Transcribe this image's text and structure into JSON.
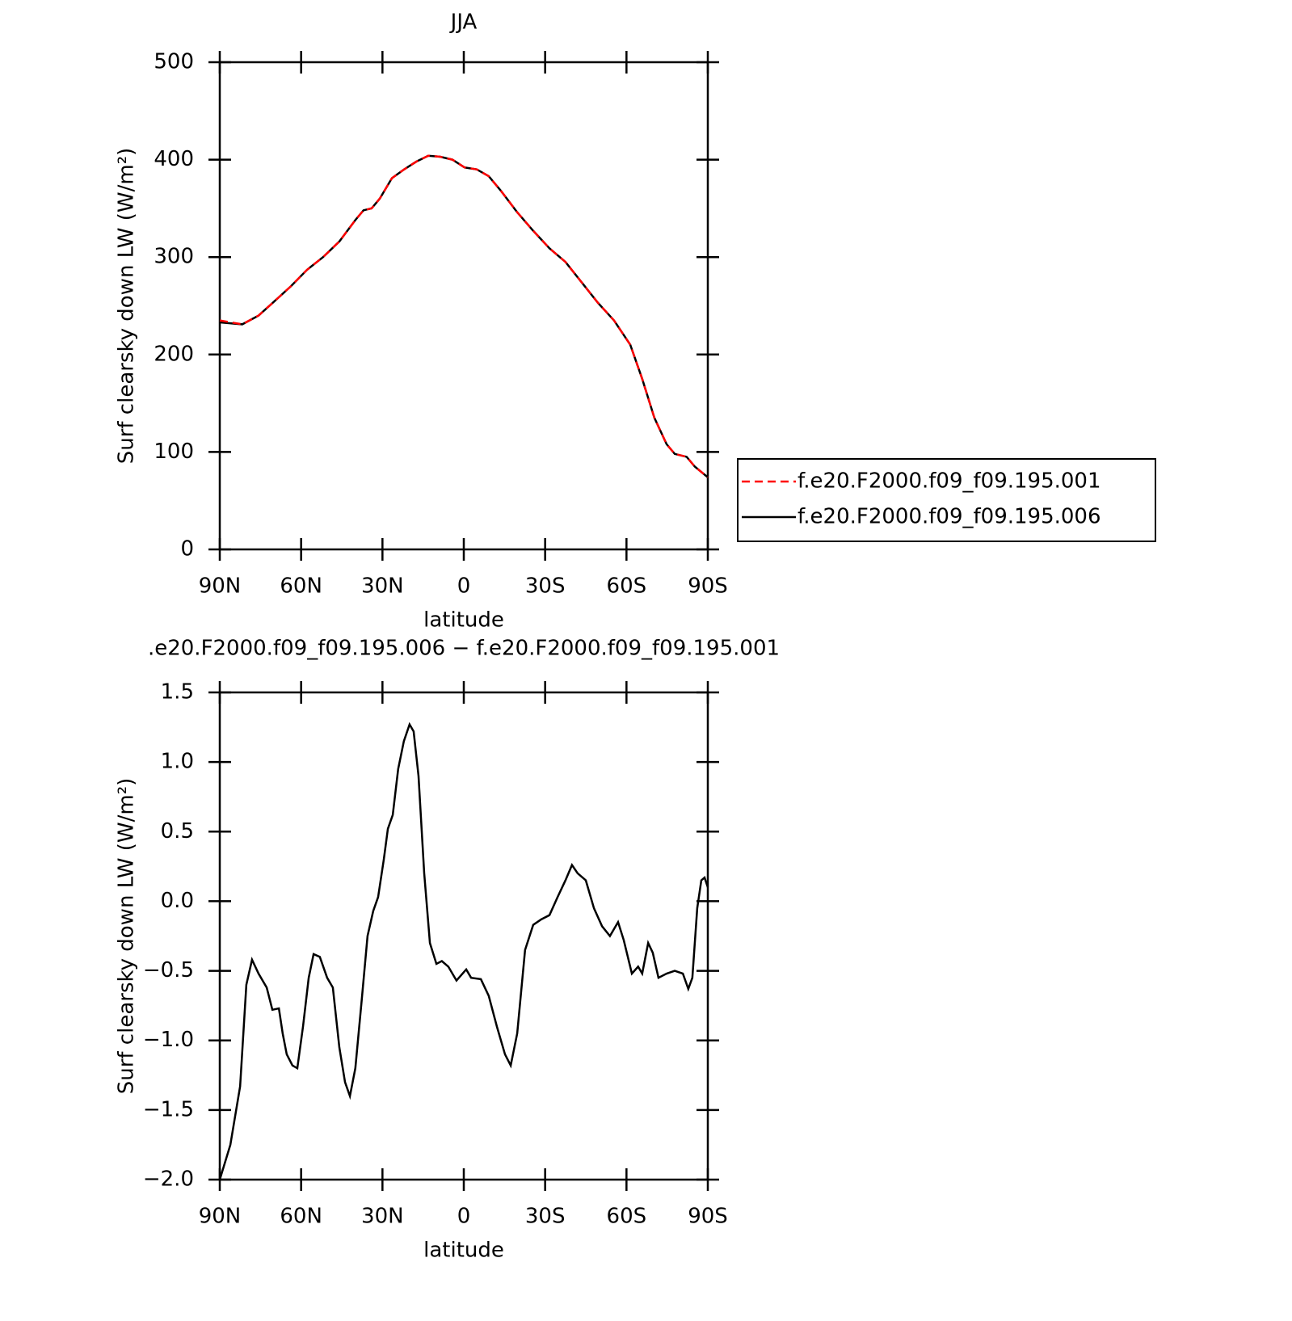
{
  "chart_data": [
    {
      "type": "line",
      "title": "JJA",
      "xlabel": "latitude",
      "ylabel": "Surf clearsky down LW (W/m²)",
      "xlim": [
        90,
        -90
      ],
      "xticks": [
        {
          "value": 90,
          "label": "90N"
        },
        {
          "value": 60,
          "label": "60N"
        },
        {
          "value": 30,
          "label": "30N"
        },
        {
          "value": 0,
          "label": "0"
        },
        {
          "value": -30,
          "label": "30S"
        },
        {
          "value": -60,
          "label": "60S"
        },
        {
          "value": -90,
          "label": "90S"
        }
      ],
      "ylim": [
        0,
        500
      ],
      "yticks": [
        0,
        100,
        200,
        300,
        400,
        500
      ],
      "legend": "outside-right",
      "x": [
        90,
        81.7,
        75.7,
        69.7,
        63.8,
        57.8,
        51.9,
        45.9,
        40,
        37,
        34,
        31,
        26.5,
        22,
        17.5,
        13.1,
        8.7,
        4.2,
        -0.3,
        -4.8,
        -9.2,
        -13.7,
        -19.7,
        -25.6,
        -31.6,
        -37.5,
        -43.5,
        -49.5,
        -55.4,
        -61.4,
        -65.8,
        -70.3,
        -74.8,
        -77.8,
        -82.2,
        -85.2,
        -90
      ],
      "series": [
        {
          "name": "f.e20.F2000.f09_f09.195.001",
          "color": "#ff0000",
          "dashed": true,
          "values": [
            235,
            231,
            240,
            255,
            270,
            287,
            300,
            316,
            338,
            348,
            350,
            360,
            381,
            390,
            398,
            404,
            403,
            400,
            392,
            390,
            383,
            368,
            346,
            327,
            309,
            295,
            274,
            253,
            235,
            210,
            175,
            135,
            108,
            98,
            95,
            85,
            74
          ]
        },
        {
          "name": "f.e20.F2000.f09_f09.195.006",
          "color": "#000000",
          "dashed": false,
          "values": [
            233,
            231,
            240,
            255,
            270,
            287,
            300,
            316,
            338,
            348,
            350,
            360,
            381,
            390,
            398,
            404,
            403,
            400,
            392,
            390,
            383,
            368,
            346,
            327,
            309,
            295,
            274,
            253,
            235,
            210,
            175,
            135,
            108,
            98,
            95,
            85,
            74
          ]
        }
      ]
    },
    {
      "type": "line",
      "title": ".e20.F2000.f09_f09.195.006 − f.e20.F2000.f09_f09.195.001",
      "xlabel": "latitude",
      "ylabel": "Surf clearsky down LW (W/m²)",
      "xlim": [
        90,
        -90
      ],
      "xticks": [
        {
          "value": 90,
          "label": "90N"
        },
        {
          "value": 60,
          "label": "60N"
        },
        {
          "value": 30,
          "label": "30N"
        },
        {
          "value": 0,
          "label": "0"
        },
        {
          "value": -30,
          "label": "30S"
        },
        {
          "value": -60,
          "label": "60S"
        },
        {
          "value": -90,
          "label": "90S"
        }
      ],
      "ylim": [
        -2.0,
        1.5
      ],
      "yticks": [
        {
          "value": -2.0,
          "label": "−2.0"
        },
        {
          "value": -1.5,
          "label": "−1.5"
        },
        {
          "value": -1.0,
          "label": "−1.0"
        },
        {
          "value": -0.5,
          "label": "−0.5"
        },
        {
          "value": 0,
          "label": "0.0"
        },
        {
          "value": 0.5,
          "label": "0.5"
        },
        {
          "value": 1.0,
          "label": "1.0"
        },
        {
          "value": 1.5,
          "label": "1.5"
        }
      ],
      "color": "#000000",
      "x": [
        90,
        86.1,
        82.5,
        80.2,
        78.1,
        75.7,
        72.7,
        70.6,
        68.2,
        66.8,
        65.3,
        63.2,
        61.4,
        59.3,
        57.2,
        55.4,
        53.1,
        50.4,
        48.3,
        45.9,
        43.8,
        42,
        40,
        37.6,
        35.5,
        33.4,
        31.6,
        29.5,
        28,
        26.2,
        24.2,
        22.1,
        20,
        18.5,
        16.7,
        14.6,
        12.5,
        10.1,
        8.1,
        5.7,
        2.7,
        -0.9,
        -2.7,
        -6.3,
        -9.2,
        -12.2,
        -15.2,
        -17.3,
        -19.7,
        -22.6,
        -25.6,
        -28.6,
        -31.6,
        -34.6,
        -37.5,
        -39.9,
        -42,
        -45,
        -48,
        -51,
        -53.9,
        -56.9,
        -59,
        -62,
        -64.3,
        -65.8,
        -68,
        -69.7,
        -71.8,
        -74.8,
        -77.8,
        -80.8,
        -82.8,
        -84.3,
        -86.1,
        -87.6,
        -88.8,
        -90
      ],
      "values": [
        -2.0,
        -1.75,
        -1.33,
        -0.6,
        -0.42,
        -0.52,
        -0.62,
        -0.78,
        -0.77,
        -0.95,
        -1.1,
        -1.18,
        -1.2,
        -0.9,
        -0.55,
        -0.38,
        -0.4,
        -0.55,
        -0.62,
        -1.05,
        -1.3,
        -1.4,
        -1.2,
        -0.7,
        -0.25,
        -0.07,
        0.03,
        0.3,
        0.52,
        0.62,
        0.95,
        1.15,
        1.27,
        1.22,
        0.9,
        0.2,
        -0.3,
        -0.45,
        -0.43,
        -0.47,
        -0.57,
        -0.49,
        -0.55,
        -0.56,
        -0.68,
        -0.9,
        -1.1,
        -1.18,
        -0.95,
        -0.35,
        -0.17,
        -0.13,
        -0.1,
        0.03,
        0.15,
        0.26,
        0.2,
        0.15,
        -0.05,
        -0.18,
        -0.25,
        -0.15,
        -0.28,
        -0.52,
        -0.47,
        -0.52,
        -0.3,
        -0.37,
        -0.55,
        -0.52,
        -0.5,
        -0.52,
        -0.63,
        -0.55,
        -0.05,
        0.15,
        0.17,
        0.1
      ]
    }
  ]
}
